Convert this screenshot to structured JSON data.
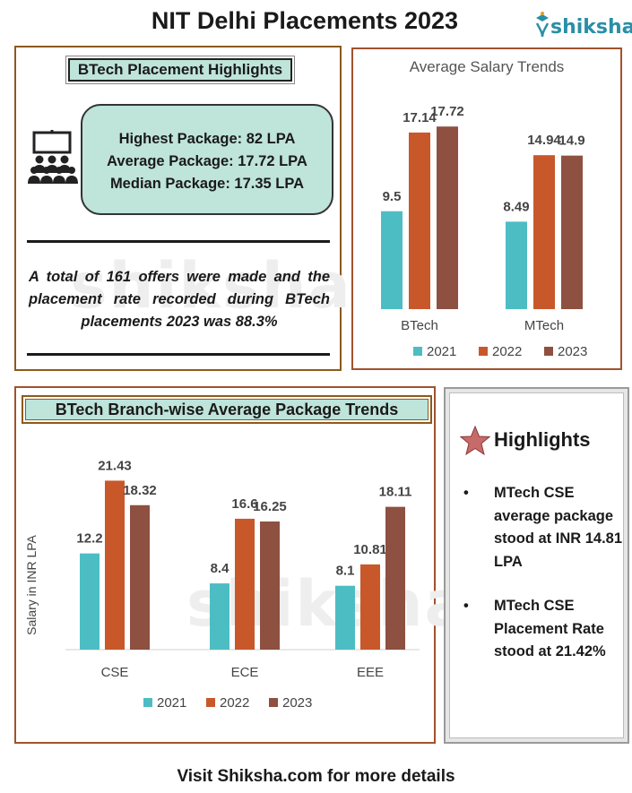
{
  "title": "NIT Delhi Placements 2023",
  "brand": {
    "name": "shiksha",
    "color": "#2a8fa6"
  },
  "watermark": "shiksha",
  "highlights": {
    "header": "BTech Placement Highlights",
    "icon": "audience-presentation-icon",
    "packages": [
      "Highest Package: 82 LPA",
      "Average Package: 17.72 LPA",
      "Median Package: 17.35 LPA"
    ],
    "summary": "A total of 161 offers were made and the placement rate recorded during BTech placements 2023 was 88.3%"
  },
  "chart_data": [
    {
      "type": "bar",
      "title": "Average Salary Trends",
      "categories": [
        "BTech",
        "MTech"
      ],
      "series": [
        {
          "name": "2021",
          "values": [
            9.5,
            8.49
          ],
          "color": "#4dbdc4"
        },
        {
          "name": "2022",
          "values": [
            17.14,
            14.94
          ],
          "color": "#c8582a"
        },
        {
          "name": "2023",
          "values": [
            17.72,
            14.9
          ],
          "color": "#8e5040"
        }
      ],
      "xlabel": "",
      "ylabel": "",
      "ylim": [
        0,
        20
      ],
      "legend": "bottom",
      "grid": false
    },
    {
      "type": "bar",
      "title": "BTech Branch-wise Average Package Trends",
      "categories": [
        "CSE",
        "ECE",
        "EEE"
      ],
      "series": [
        {
          "name": "2021",
          "values": [
            12.2,
            8.4,
            8.1
          ],
          "color": "#4dbdc4"
        },
        {
          "name": "2022",
          "values": [
            21.43,
            16.6,
            10.81
          ],
          "color": "#c8582a"
        },
        {
          "name": "2023",
          "values": [
            18.32,
            16.25,
            18.11
          ],
          "color": "#8e5040"
        }
      ],
      "xlabel": "",
      "ylabel": "Salary in INR LPA",
      "ylim": [
        0,
        25
      ],
      "legend": "bottom",
      "grid": false
    }
  ],
  "notes": {
    "title": "Highlights",
    "icon": "star-icon",
    "items": [
      "MTech CSE average package stood at INR 14.81 LPA",
      "MTech CSE Placement Rate stood at 21.42%"
    ]
  },
  "footer": "Visit Shiksha.com for more details"
}
